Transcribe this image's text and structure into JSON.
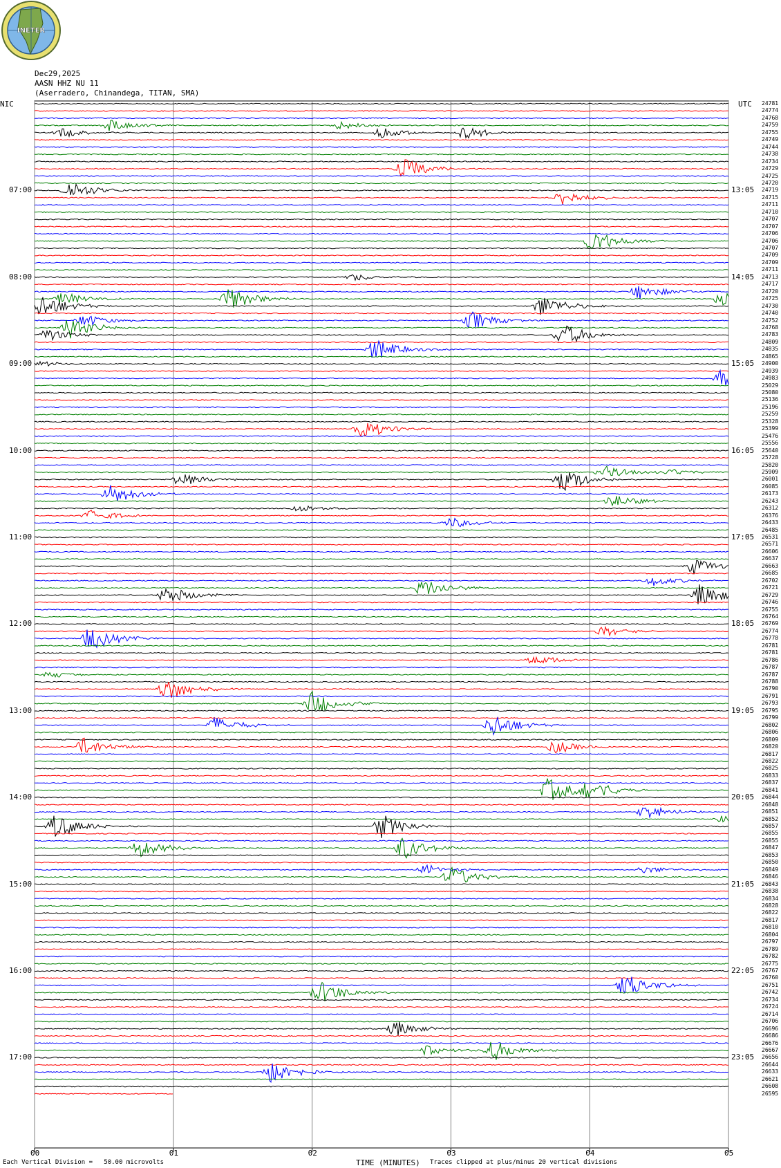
{
  "header": {
    "logo_text": "INETER",
    "date": "Dec29,2025",
    "channel": "AASN HHZ NU 11",
    "location": "(Aserradero, Chinandega, TITAN, SMA)"
  },
  "left_timezone": "NIC",
  "right_timezone": "UTC",
  "left_times": [
    "07:00",
    "08:00",
    "09:00",
    "10:00",
    "11:00",
    "12:00",
    "13:00",
    "14:00",
    "15:00",
    "16:00",
    "17:00"
  ],
  "right_times": [
    "13:05",
    "14:05",
    "15:05",
    "16:05",
    "17:05",
    "18:05",
    "19:05",
    "20:05",
    "21:05",
    "22:05",
    "23:05"
  ],
  "trace_counts": [
    "24781",
    "24774",
    "24768",
    "24759",
    "24755",
    "24749",
    "24744",
    "24738",
    "24734",
    "24729",
    "24725",
    "24720",
    "24719",
    "24715",
    "24711",
    "24710",
    "24707",
    "24707",
    "24706",
    "24706",
    "24707",
    "24709",
    "24709",
    "24711",
    "24713",
    "24717",
    "24720",
    "24725",
    "24730",
    "24740",
    "24752",
    "24768",
    "24783",
    "24809",
    "24835",
    "24865",
    "24900",
    "24939",
    "24983",
    "25029",
    "25080",
    "25136",
    "25196",
    "25259",
    "25328",
    "25399",
    "25476",
    "25556",
    "25640",
    "25728",
    "25820",
    "25909",
    "26001",
    "26085",
    "26173",
    "26243",
    "26312",
    "26376",
    "26433",
    "26485",
    "26531",
    "26571",
    "26606",
    "26637",
    "26663",
    "26685",
    "26702",
    "26721",
    "26729",
    "26746",
    "26755",
    "26764",
    "26769",
    "26774",
    "26778",
    "26781",
    "26781",
    "26786",
    "26787",
    "26787",
    "26788",
    "26790",
    "26791",
    "26793",
    "26795",
    "26799",
    "26802",
    "26806",
    "26809",
    "26820",
    "26817",
    "26822",
    "26825",
    "26833",
    "26837",
    "26841",
    "26844",
    "26848",
    "26851",
    "26852",
    "26857",
    "26855",
    "26855",
    "26847",
    "26853",
    "26850",
    "26849",
    "26846",
    "26843",
    "26838",
    "26834",
    "26828",
    "26822",
    "26817",
    "26810",
    "26804",
    "26797",
    "26789",
    "26782",
    "26775",
    "26767",
    "26760",
    "26751",
    "26742",
    "26734",
    "26724",
    "26714",
    "26706",
    "26696",
    "26686",
    "26676",
    "26667",
    "26656",
    "26644",
    "26633",
    "26621",
    "26608",
    "26595"
  ],
  "x_ticks": [
    "00",
    "01",
    "02",
    "03",
    "04",
    "05"
  ],
  "x_axis_title": "TIME (MINUTES)",
  "footer_left": "Each Vertical Division =   50.00 microvolts",
  "footer_right": "Traces clipped at plus/minus 20 vertical divisions",
  "trace_colors": [
    "#000000",
    "#ff0000",
    "#0000ff",
    "#007f00"
  ],
  "events": [
    {
      "trace": 3,
      "t": 0.55,
      "amp": 10
    },
    {
      "trace": 3,
      "t": 2.2,
      "amp": 6
    },
    {
      "trace": 4,
      "t": 0.2,
      "amp": 7
    },
    {
      "trace": 4,
      "t": 2.5,
      "amp": 8
    },
    {
      "trace": 4,
      "t": 3.1,
      "amp": 10
    },
    {
      "trace": 9,
      "t": 2.65,
      "amp": 16
    },
    {
      "trace": 12,
      "t": 0.25,
      "amp": 14
    },
    {
      "trace": 13,
      "t": 3.8,
      "amp": 12
    },
    {
      "trace": 19,
      "t": 4.02,
      "amp": 18
    },
    {
      "trace": 24,
      "t": 2.3,
      "amp": 6
    },
    {
      "trace": 26,
      "t": 4.35,
      "amp": 12
    },
    {
      "trace": 27,
      "t": 0.2,
      "amp": 10
    },
    {
      "trace": 27,
      "t": 1.4,
      "amp": 18
    },
    {
      "trace": 27,
      "t": 4.95,
      "amp": 12
    },
    {
      "trace": 28,
      "t": 0.05,
      "amp": 18
    },
    {
      "trace": 28,
      "t": 3.65,
      "amp": 16
    },
    {
      "trace": 30,
      "t": 0.35,
      "amp": 10
    },
    {
      "trace": 30,
      "t": 3.15,
      "amp": 14
    },
    {
      "trace": 31,
      "t": 0.25,
      "amp": 16
    },
    {
      "trace": 32,
      "t": 0.08,
      "amp": 10
    },
    {
      "trace": 32,
      "t": 3.8,
      "amp": 18
    },
    {
      "trace": 34,
      "t": 2.45,
      "amp": 16
    },
    {
      "trace": 36,
      "t": 0.05,
      "amp": 4
    },
    {
      "trace": 38,
      "t": 4.95,
      "amp": 14
    },
    {
      "trace": 45,
      "t": 2.35,
      "amp": 16
    },
    {
      "trace": 51,
      "t": 4.1,
      "amp": 10
    },
    {
      "trace": 51,
      "t": 4.6,
      "amp": 5
    },
    {
      "trace": 52,
      "t": 1.05,
      "amp": 10
    },
    {
      "trace": 52,
      "t": 3.8,
      "amp": 18
    },
    {
      "trace": 54,
      "t": 0.55,
      "amp": 16
    },
    {
      "trace": 55,
      "t": 4.15,
      "amp": 12
    },
    {
      "trace": 56,
      "t": 1.9,
      "amp": 6
    },
    {
      "trace": 57,
      "t": 0.4,
      "amp": 10
    },
    {
      "trace": 58,
      "t": 3.0,
      "amp": 8
    },
    {
      "trace": 64,
      "t": 4.75,
      "amp": 12
    },
    {
      "trace": 66,
      "t": 4.45,
      "amp": 8
    },
    {
      "trace": 67,
      "t": 2.8,
      "amp": 14
    },
    {
      "trace": 68,
      "t": 0.95,
      "amp": 14
    },
    {
      "trace": 68,
      "t": 4.8,
      "amp": 18
    },
    {
      "trace": 73,
      "t": 4.1,
      "amp": 8
    },
    {
      "trace": 74,
      "t": 0.4,
      "amp": 18
    },
    {
      "trace": 77,
      "t": 3.6,
      "amp": 8
    },
    {
      "trace": 79,
      "t": 0.1,
      "amp": 5
    },
    {
      "trace": 81,
      "t": 0.95,
      "amp": 18
    },
    {
      "trace": 83,
      "t": 2.0,
      "amp": 18
    },
    {
      "trace": 86,
      "t": 1.3,
      "amp": 12
    },
    {
      "trace": 86,
      "t": 3.3,
      "amp": 18
    },
    {
      "trace": 89,
      "t": 0.35,
      "amp": 14
    },
    {
      "trace": 89,
      "t": 3.75,
      "amp": 10
    },
    {
      "trace": 95,
      "t": 3.7,
      "amp": 18
    },
    {
      "trace": 95,
      "t": 3.95,
      "amp": 18
    },
    {
      "trace": 98,
      "t": 4.4,
      "amp": 10
    },
    {
      "trace": 99,
      "t": 4.95,
      "amp": 6
    },
    {
      "trace": 100,
      "t": 0.15,
      "amp": 18
    },
    {
      "trace": 100,
      "t": 2.5,
      "amp": 18
    },
    {
      "trace": 103,
      "t": 0.75,
      "amp": 14
    },
    {
      "trace": 103,
      "t": 2.65,
      "amp": 18
    },
    {
      "trace": 106,
      "t": 2.8,
      "amp": 8
    },
    {
      "trace": 106,
      "t": 4.4,
      "amp": 6
    },
    {
      "trace": 107,
      "t": 3.0,
      "amp": 16
    },
    {
      "trace": 123,
      "t": 2.05,
      "amp": 18
    },
    {
      "trace": 122,
      "t": 4.25,
      "amp": 18
    },
    {
      "trace": 128,
      "t": 2.6,
      "amp": 12
    },
    {
      "trace": 131,
      "t": 2.8,
      "amp": 8
    },
    {
      "trace": 131,
      "t": 3.3,
      "amp": 16
    },
    {
      "trace": 134,
      "t": 1.7,
      "amp": 18
    }
  ]
}
